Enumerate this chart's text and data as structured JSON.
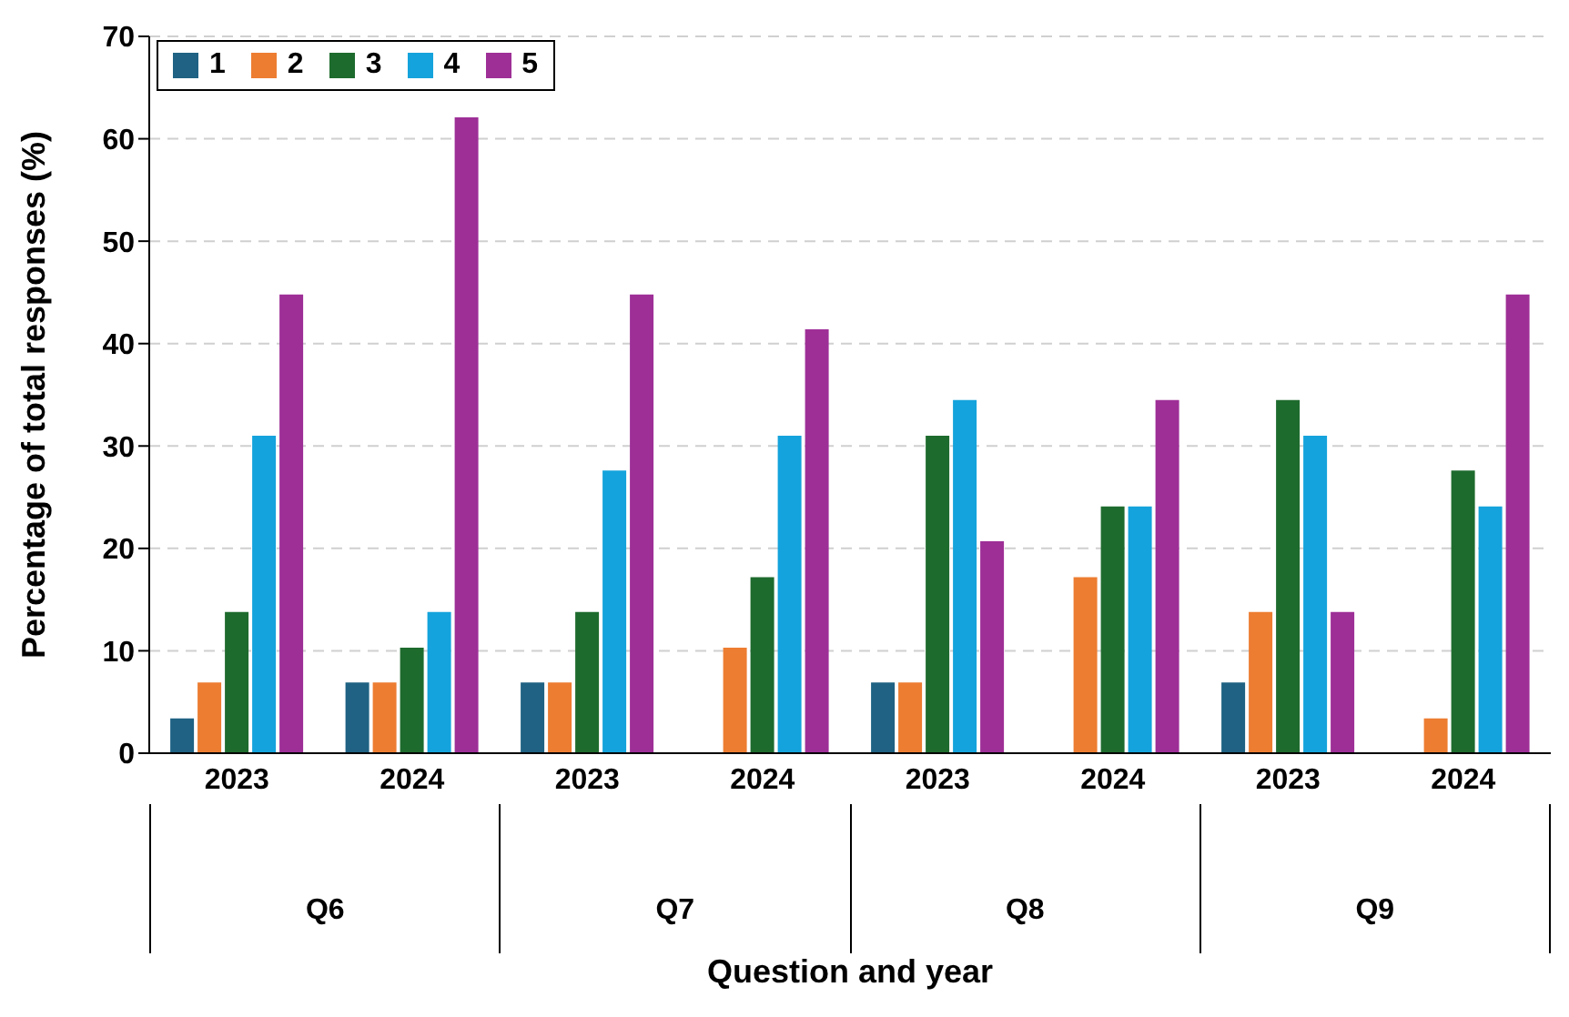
{
  "chart_data": {
    "type": "bar",
    "xlabel": "Question and year",
    "ylabel": "Percentage of total responses (%)",
    "categories": [
      "2023",
      "2024",
      "2023",
      "2024",
      "2023",
      "2024",
      "2023",
      "2024"
    ],
    "annotations": [
      "Q6",
      "Q7",
      "Q8",
      "Q9"
    ],
    "series": [
      {
        "name": "1",
        "color": "#1f6283",
        "values": [
          3.4,
          6.9,
          6.9,
          0,
          6.9,
          0,
          6.9,
          0
        ]
      },
      {
        "name": "2",
        "color": "#ed7d31",
        "values": [
          6.9,
          6.9,
          6.9,
          10.3,
          6.9,
          17.2,
          13.8,
          3.4
        ]
      },
      {
        "name": "3",
        "color": "#1e6b2e",
        "values": [
          13.8,
          10.3,
          13.8,
          17.2,
          31.0,
          24.1,
          34.5,
          27.6
        ]
      },
      {
        "name": "4",
        "color": "#14a3dc",
        "values": [
          31.0,
          13.8,
          27.6,
          31.0,
          34.5,
          24.1,
          31.0,
          24.1
        ]
      },
      {
        "name": "5",
        "color": "#9e2f97",
        "values": [
          44.8,
          62.1,
          44.8,
          41.4,
          20.7,
          34.5,
          13.8,
          44.8
        ]
      }
    ],
    "ylim": [
      0,
      70
    ],
    "yticks": [
      0,
      10,
      20,
      30,
      40,
      50,
      60,
      70
    ],
    "grid": "y",
    "legend": "top left"
  }
}
